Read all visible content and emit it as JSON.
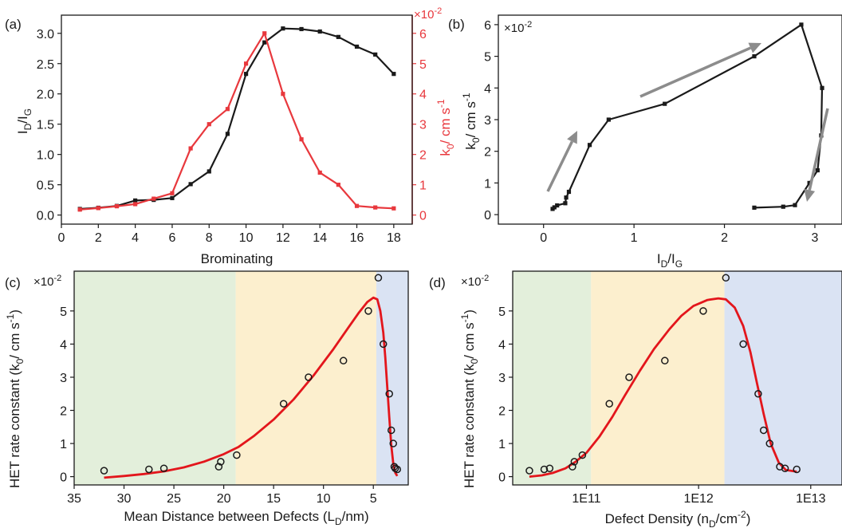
{
  "figure": {
    "panel_labels": [
      "(a)",
      "(b)",
      "(c)",
      "(d)"
    ],
    "scale_note": "×10",
    "scale_exp": "-2",
    "colors": {
      "black": "#1a1a1a",
      "red": "#e8383d",
      "fit_red": "#e3161c",
      "green_region": "#e3efdb",
      "yellow_region": "#fcefce",
      "blue_region": "#dae3f3",
      "arrow_grey": "#8c8c8c"
    }
  },
  "chart_data": [
    {
      "type": "line",
      "panel": "(a)",
      "xlabel": "Brominating",
      "ylabel_left": {
        "main": "I",
        "sub1": "D",
        "mid": "/I",
        "sub2": "G"
      },
      "ylabel_right": {
        "main": "k",
        "sub": "0",
        "rest": "/ cm s",
        "sup": "-1"
      },
      "xlim": [
        0,
        19
      ],
      "ylim_left": [
        -0.15,
        3.3
      ],
      "ylim_right": [
        -0.3,
        6.6
      ],
      "xticks": [
        0,
        2,
        4,
        6,
        8,
        10,
        12,
        14,
        16,
        18
      ],
      "yticks_left": [
        0.0,
        0.5,
        1.0,
        1.5,
        2.0,
        2.5,
        3.0
      ],
      "yticks_left_labels": [
        "0.0",
        "0.5",
        "1.0",
        "1.5",
        "2.0",
        "2.5",
        "3.0"
      ],
      "yticks_right": [
        0,
        1,
        2,
        3,
        4,
        5,
        6
      ],
      "series": [
        {
          "axis": "left",
          "color": "#1a1a1a",
          "x": [
            1,
            2,
            3,
            4,
            5,
            6,
            7,
            8,
            9,
            10,
            11,
            12,
            13,
            14,
            15,
            16,
            17,
            18
          ],
          "values": [
            0.1,
            0.12,
            0.15,
            0.24,
            0.25,
            0.28,
            0.51,
            0.72,
            1.34,
            2.33,
            2.85,
            3.08,
            3.07,
            3.03,
            2.94,
            2.78,
            2.65,
            2.33
          ]
        },
        {
          "axis": "right",
          "color": "#e8383d",
          "x": [
            1,
            2,
            3,
            4,
            5,
            6,
            7,
            8,
            9,
            10,
            11,
            12,
            13,
            14,
            15,
            16,
            17,
            18
          ],
          "values": [
            0.18,
            0.23,
            0.29,
            0.36,
            0.54,
            0.72,
            2.2,
            3.0,
            3.5,
            5.0,
            6.0,
            4.0,
            2.5,
            1.4,
            1.0,
            0.3,
            0.25,
            0.22
          ]
        }
      ]
    },
    {
      "type": "line",
      "panel": "(b)",
      "xlabel": {
        "main": "I",
        "sub1": "D",
        "mid": "/I",
        "sub2": "G"
      },
      "ylabel": {
        "main": "k",
        "sub": "0",
        "rest": "/ cm s",
        "sup": "-1"
      },
      "xlim": [
        -0.5,
        3.3
      ],
      "ylim": [
        -0.3,
        6.3
      ],
      "xticks": [
        0,
        1,
        2,
        3
      ],
      "yticks": [
        0,
        1,
        2,
        3,
        4,
        5,
        6
      ],
      "series": [
        {
          "color": "#1a1a1a",
          "x": [
            0.1,
            0.12,
            0.15,
            0.24,
            0.25,
            0.28,
            0.51,
            0.72,
            1.34,
            2.33,
            2.85,
            3.08,
            3.07,
            3.03,
            2.94,
            2.78,
            2.65,
            2.33
          ],
          "values": [
            0.18,
            0.23,
            0.29,
            0.36,
            0.54,
            0.72,
            2.2,
            3.0,
            3.5,
            5.0,
            6.0,
            4.0,
            2.5,
            1.4,
            1.0,
            0.3,
            0.25,
            0.22
          ]
        }
      ]
    },
    {
      "type": "scatter",
      "panel": "(c)",
      "xlabel": {
        "main": "Mean Distance between Defects (L",
        "sub": "D",
        "rest": "/nm)"
      },
      "ylabel": {
        "main": "HET rate constant (k",
        "sub": "0",
        "rest": "/ cm s",
        "sup": "-1",
        "end": ")"
      },
      "xlim": [
        35,
        1.5
      ],
      "ylim": [
        -0.25,
        6.2
      ],
      "xticks": [
        35,
        30,
        25,
        20,
        15,
        10,
        5
      ],
      "yticks": [
        0,
        1,
        2,
        3,
        4,
        5
      ],
      "regions": [
        [
          35,
          18.8,
          "#e3efdb"
        ],
        [
          18.8,
          4.7,
          "#fcefce"
        ],
        [
          4.7,
          1.5,
          "#dae3f3"
        ]
      ],
      "points": {
        "x": [
          32,
          27.5,
          26,
          20.5,
          20.3,
          18.7,
          14,
          11.5,
          8,
          5.5,
          4.5,
          4,
          3.4,
          3.2,
          3,
          2.9,
          2.8,
          2.6
        ],
        "values": [
          0.18,
          0.22,
          0.25,
          0.3,
          0.45,
          0.65,
          2.2,
          3.0,
          3.5,
          5.0,
          6.0,
          4.0,
          2.5,
          1.4,
          1.0,
          0.3,
          0.25,
          0.22
        ]
      },
      "fit": {
        "color": "#e3161c",
        "x": [
          32,
          30,
          28,
          26,
          24,
          22,
          20,
          18.5,
          17,
          15,
          13,
          11,
          9,
          7.5,
          6.5,
          5.6,
          5,
          4.6,
          4.3,
          4.0,
          3.8,
          3.6,
          3.4,
          3.2,
          3.0,
          2.8,
          2.6
        ],
        "values": [
          -0.03,
          0.02,
          0.08,
          0.16,
          0.28,
          0.45,
          0.68,
          0.9,
          1.22,
          1.72,
          2.33,
          3.05,
          3.85,
          4.5,
          4.93,
          5.27,
          5.4,
          5.35,
          5.0,
          4.35,
          3.6,
          2.7,
          1.8,
          0.95,
          0.4,
          0.12,
          0.02
        ]
      }
    },
    {
      "type": "scatter",
      "panel": "(d)",
      "xlabel": {
        "main": "Defect Density (n",
        "sub": "D",
        "rest": "/cm",
        "sup": "-2",
        "end": ")"
      },
      "ylabel": {
        "main": "HET rate constant (k",
        "sub": "0",
        "rest": "/ cm s",
        "sup": "-1",
        "end": ")"
      },
      "xscale": "log",
      "xlim": [
        22000000000.0,
        19000000000000.0
      ],
      "ylim": [
        -0.25,
        6.2
      ],
      "xticks": [
        100000000000.0,
        1000000000000.0,
        10000000000000.0
      ],
      "xtick_labels": [
        "1E11",
        "1E12",
        "1E13"
      ],
      "yticks": [
        0,
        1,
        2,
        3,
        4,
        5
      ],
      "regions": [
        [
          22000000000.0,
          110000000000.0,
          "#e3efdb"
        ],
        [
          110000000000.0,
          1700000000000.0,
          "#fcefce"
        ],
        [
          1700000000000.0,
          19000000000000.0,
          "#dae3f3"
        ]
      ],
      "points": {
        "x": [
          31000000000.0,
          42000000000.0,
          47000000000.0,
          75000000000.0,
          78000000000.0,
          92000000000.0,
          160000000000.0,
          240000000000.0,
          500000000000.0,
          1100000000000.0,
          1750000000000.0,
          2500000000000.0,
          3400000000000.0,
          3800000000000.0,
          4300000000000.0,
          5300000000000.0,
          5900000000000.0,
          7500000000000.0
        ],
        "values": [
          0.18,
          0.22,
          0.25,
          0.3,
          0.45,
          0.65,
          2.2,
          3.0,
          3.5,
          5.0,
          6.0,
          4.0,
          2.5,
          1.4,
          1.0,
          0.3,
          0.25,
          0.22
        ]
      },
      "fit": {
        "color": "#e3161c",
        "x": [
          31000000000.0,
          40000000000.0,
          50000000000.0,
          65000000000.0,
          80000000000.0,
          100000000000.0,
          130000000000.0,
          170000000000.0,
          220000000000.0,
          300000000000.0,
          400000000000.0,
          550000000000.0,
          700000000000.0,
          900000000000.0,
          1200000000000.0,
          1500000000000.0,
          1750000000000.0,
          2100000000000.0,
          2500000000000.0,
          2900000000000.0,
          3300000000000.0,
          3800000000000.0,
          4400000000000.0,
          5200000000000.0,
          6000000000000.0,
          7500000000000.0
        ],
        "values": [
          0.0,
          0.04,
          0.11,
          0.25,
          0.45,
          0.72,
          1.2,
          1.8,
          2.45,
          3.2,
          3.85,
          4.45,
          4.85,
          5.15,
          5.33,
          5.38,
          5.35,
          5.1,
          4.55,
          3.75,
          2.85,
          1.9,
          1.0,
          0.42,
          0.2,
          0.15
        ]
      }
    }
  ]
}
